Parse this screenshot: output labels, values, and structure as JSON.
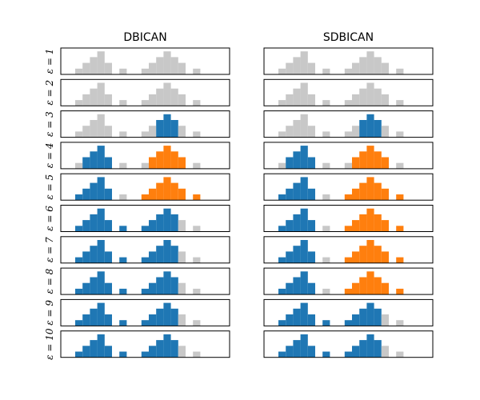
{
  "chart_data": {
    "type": "bar",
    "description_free": true,
    "column_titles": [
      "DBICAN",
      "SDBICAN"
    ],
    "row_labels": [
      "ε = 1",
      "ε = 2",
      "ε = 3",
      "ε = 4",
      "ε = 5",
      "ε = 6",
      "ε = 7",
      "ε = 8",
      "ε = 9",
      "ε = 10"
    ],
    "histogram_heights": [
      1,
      2,
      3,
      4,
      2,
      0,
      1,
      0,
      0,
      1,
      2,
      3,
      4,
      3,
      2,
      0,
      1
    ],
    "colors": {
      "noise": "#c8c8c8",
      "cluster1": "#1f77b4",
      "cluster2": "#ff7f0e"
    },
    "assignments": {
      "DBICAN": [
        "nnnnnnnnnnnnnnnnn",
        "nnnnnnnnnnnnnnnnn",
        "nnnnnnnnnnnbbbnnn",
        "nbbbbnnnnnooooonn",
        "bbbbbnnnnoooooono",
        "bbbbbnbnnbbbbbnbn",
        "bbbbbnbnnbbbbbnbn",
        "bbbbbnbnnbbbbbnbn",
        "bbbbbnbnnbbbbbnbn",
        "bbbbbnbnnbbbbbnbn"
      ],
      "SDBICAN": [
        "nnnnnnnnnnnnnnnnn",
        "nnnnnnnnnnnnnnnnn",
        "nnnnnnnnnnnbbbnnn",
        "nbbbbnnnnnooooonn",
        "bbbbbnnnnoooooono",
        "bbbbbnnnnoooooono",
        "bbbbbnnnnoooooono",
        "bbbbbnnnnoooooono",
        "bbbbbnbnnbbbbbnbn",
        "bbbbbnbnnbbbbbnbn"
      ]
    },
    "ticks": false,
    "grid": false
  }
}
